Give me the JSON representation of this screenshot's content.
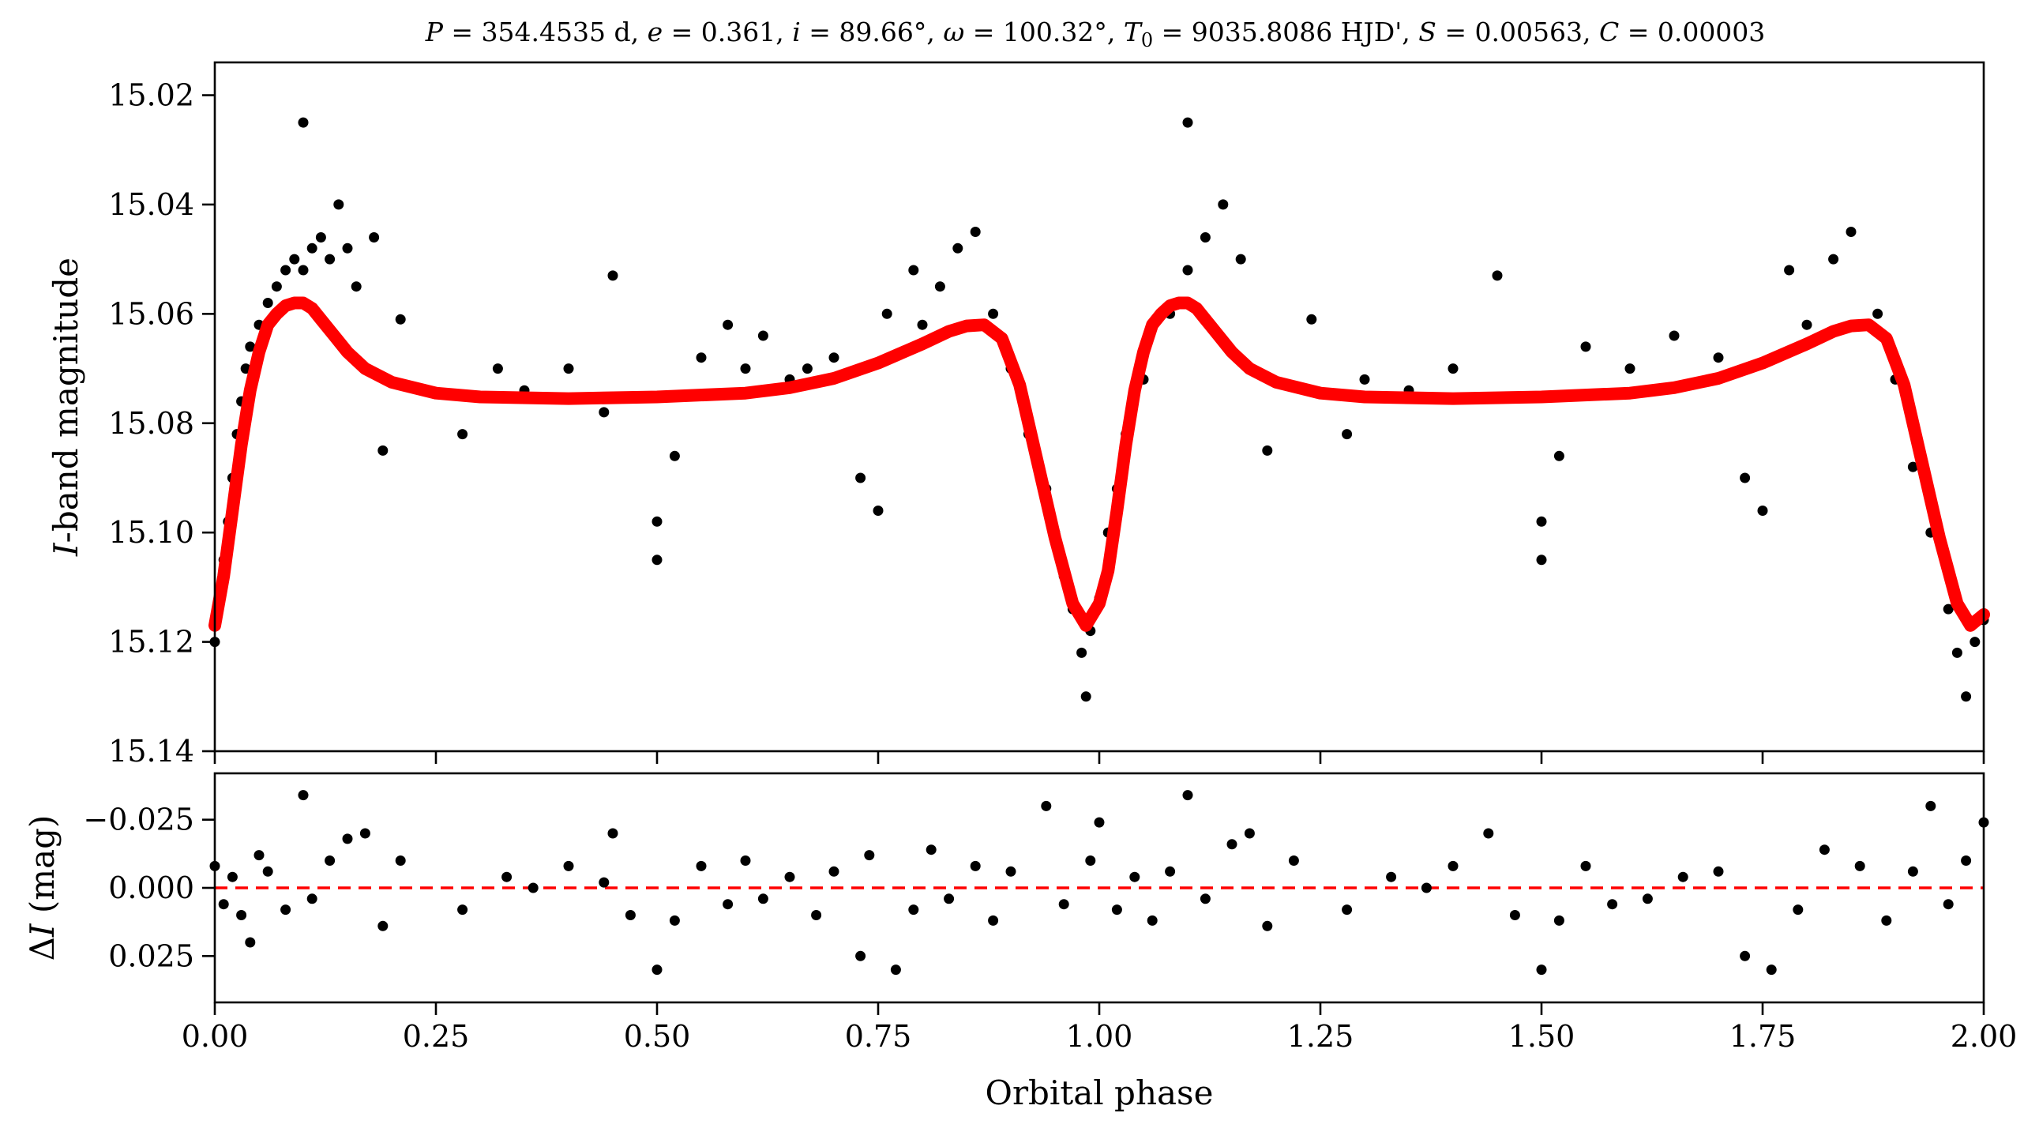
{
  "chart_data": [
    {
      "type": "scatter",
      "panel": "top",
      "title": "P = 354.4535 d, e = 0.361, i = 89.66°, ω = 100.32°, T0 = 9035.8086 HJD', S = 0.00563, C = 0.00003",
      "title_parts": {
        "P_sym": "P",
        "P_val": " = 354.4535 d, ",
        "e_sym": "e",
        "e_val": " = 0.361, ",
        "i_sym": "i",
        "i_val": " = 89.66°, ",
        "w_sym": "ω",
        "w_val": " = 100.32°, ",
        "T_sym": "T",
        "T_sub": "0",
        "T_val": " = 9035.8086 HJD', ",
        "S_sym": "S",
        "S_val": " = 0.00563, ",
        "C_sym": "C",
        "C_val": " = 0.00003"
      },
      "xlabel": "",
      "ylabel": "I-band magnitude",
      "ylabel_parts": {
        "sym": "I",
        "rest": "-band magnitude"
      },
      "xlim": [
        0.0,
        2.0
      ],
      "ylim": [
        15.14,
        15.014
      ],
      "y_inverted": true,
      "yticks": [
        15.02,
        15.04,
        15.06,
        15.08,
        15.1,
        15.12,
        15.14
      ],
      "ytick_labels": [
        "15.02",
        "15.04",
        "15.06",
        "15.08",
        "15.10",
        "15.12",
        "15.14"
      ],
      "xticks": [
        0.0,
        0.25,
        0.5,
        0.75,
        1.0,
        1.25,
        1.5,
        1.75,
        2.0
      ],
      "grid": false,
      "series": [
        {
          "kind": "observations",
          "color": "#000000",
          "points": [
            [
              0.0,
              15.12
            ],
            [
              0.005,
              15.112
            ],
            [
              0.01,
              15.105
            ],
            [
              0.015,
              15.098
            ],
            [
              0.02,
              15.09
            ],
            [
              0.025,
              15.082
            ],
            [
              0.03,
              15.076
            ],
            [
              0.035,
              15.07
            ],
            [
              0.04,
              15.066
            ],
            [
              0.05,
              15.062
            ],
            [
              0.06,
              15.058
            ],
            [
              0.07,
              15.055
            ],
            [
              0.08,
              15.052
            ],
            [
              0.09,
              15.05
            ],
            [
              0.1,
              15.025
            ],
            [
              0.1,
              15.052
            ],
            [
              0.11,
              15.048
            ],
            [
              0.12,
              15.046
            ],
            [
              0.13,
              15.05
            ],
            [
              0.14,
              15.04
            ],
            [
              0.15,
              15.048
            ],
            [
              0.16,
              15.055
            ],
            [
              0.18,
              15.046
            ],
            [
              0.19,
              15.085
            ],
            [
              0.21,
              15.061
            ],
            [
              0.28,
              15.082
            ],
            [
              0.32,
              15.07
            ],
            [
              0.35,
              15.074
            ],
            [
              0.4,
              15.07
            ],
            [
              0.44,
              15.078
            ],
            [
              0.45,
              15.053
            ],
            [
              0.5,
              15.098
            ],
            [
              0.5,
              15.105
            ],
            [
              0.52,
              15.086
            ],
            [
              0.55,
              15.068
            ],
            [
              0.58,
              15.062
            ],
            [
              0.6,
              15.07
            ],
            [
              0.62,
              15.064
            ],
            [
              0.65,
              15.072
            ],
            [
              0.67,
              15.07
            ],
            [
              0.7,
              15.068
            ],
            [
              0.73,
              15.09
            ],
            [
              0.75,
              15.096
            ],
            [
              0.76,
              15.06
            ],
            [
              0.79,
              15.052
            ],
            [
              0.8,
              15.062
            ],
            [
              0.82,
              15.055
            ],
            [
              0.84,
              15.048
            ],
            [
              0.86,
              15.045
            ],
            [
              0.88,
              15.06
            ],
            [
              0.9,
              15.07
            ],
            [
              0.92,
              15.082
            ],
            [
              0.94,
              15.092
            ],
            [
              0.95,
              15.1
            ],
            [
              0.96,
              15.108
            ],
            [
              0.97,
              15.114
            ],
            [
              0.98,
              15.122
            ],
            [
              0.985,
              15.13
            ],
            [
              0.99,
              15.118
            ],
            [
              1.0,
              15.112
            ],
            [
              1.01,
              15.1
            ],
            [
              1.02,
              15.092
            ],
            [
              1.03,
              15.082
            ],
            [
              1.05,
              15.072
            ],
            [
              1.08,
              15.06
            ],
            [
              1.1,
              15.025
            ],
            [
              1.1,
              15.052
            ],
            [
              1.12,
              15.046
            ],
            [
              1.14,
              15.04
            ],
            [
              1.16,
              15.05
            ],
            [
              1.19,
              15.085
            ],
            [
              1.24,
              15.061
            ],
            [
              1.28,
              15.082
            ],
            [
              1.3,
              15.072
            ],
            [
              1.35,
              15.074
            ],
            [
              1.4,
              15.07
            ],
            [
              1.45,
              15.053
            ],
            [
              1.5,
              15.098
            ],
            [
              1.5,
              15.105
            ],
            [
              1.52,
              15.086
            ],
            [
              1.55,
              15.066
            ],
            [
              1.6,
              15.07
            ],
            [
              1.65,
              15.064
            ],
            [
              1.7,
              15.068
            ],
            [
              1.73,
              15.09
            ],
            [
              1.75,
              15.096
            ],
            [
              1.78,
              15.052
            ],
            [
              1.8,
              15.062
            ],
            [
              1.83,
              15.05
            ],
            [
              1.85,
              15.045
            ],
            [
              1.88,
              15.06
            ],
            [
              1.9,
              15.072
            ],
            [
              1.92,
              15.088
            ],
            [
              1.94,
              15.1
            ],
            [
              1.96,
              15.114
            ],
            [
              1.97,
              15.122
            ],
            [
              1.98,
              15.13
            ],
            [
              1.99,
              15.12
            ],
            [
              2.0,
              15.116
            ]
          ]
        },
        {
          "kind": "model",
          "color": "#ff0000",
          "points": [
            [
              0.0,
              15.117
            ],
            [
              0.01,
              15.108
            ],
            [
              0.02,
              15.096
            ],
            [
              0.03,
              15.084
            ],
            [
              0.04,
              15.074
            ],
            [
              0.05,
              15.067
            ],
            [
              0.06,
              15.062
            ],
            [
              0.07,
              15.06
            ],
            [
              0.08,
              15.0585
            ],
            [
              0.09,
              15.058
            ],
            [
              0.1,
              15.058
            ],
            [
              0.11,
              15.059
            ],
            [
              0.12,
              15.061
            ],
            [
              0.135,
              15.064
            ],
            [
              0.15,
              15.067
            ],
            [
              0.17,
              15.07
            ],
            [
              0.2,
              15.0725
            ],
            [
              0.25,
              15.0745
            ],
            [
              0.3,
              15.0752
            ],
            [
              0.4,
              15.0755
            ],
            [
              0.5,
              15.0752
            ],
            [
              0.6,
              15.0745
            ],
            [
              0.65,
              15.0735
            ],
            [
              0.7,
              15.0718
            ],
            [
              0.75,
              15.069
            ],
            [
              0.8,
              15.0655
            ],
            [
              0.83,
              15.0632
            ],
            [
              0.85,
              15.0622
            ],
            [
              0.87,
              15.062
            ],
            [
              0.89,
              15.0645
            ],
            [
              0.91,
              15.073
            ],
            [
              0.93,
              15.087
            ],
            [
              0.95,
              15.101
            ],
            [
              0.97,
              15.113
            ],
            [
              0.985,
              15.117
            ],
            [
              1.0,
              15.113
            ],
            [
              1.01,
              15.107
            ],
            [
              1.02,
              15.096
            ],
            [
              1.03,
              15.084
            ],
            [
              1.04,
              15.074
            ],
            [
              1.05,
              15.067
            ],
            [
              1.06,
              15.062
            ],
            [
              1.07,
              15.06
            ],
            [
              1.08,
              15.0585
            ],
            [
              1.09,
              15.058
            ],
            [
              1.1,
              15.058
            ],
            [
              1.11,
              15.059
            ],
            [
              1.12,
              15.061
            ],
            [
              1.135,
              15.064
            ],
            [
              1.15,
              15.067
            ],
            [
              1.17,
              15.07
            ],
            [
              1.2,
              15.0725
            ],
            [
              1.25,
              15.0745
            ],
            [
              1.3,
              15.0752
            ],
            [
              1.4,
              15.0755
            ],
            [
              1.5,
              15.0752
            ],
            [
              1.6,
              15.0745
            ],
            [
              1.65,
              15.0735
            ],
            [
              1.7,
              15.0718
            ],
            [
              1.75,
              15.069
            ],
            [
              1.8,
              15.0655
            ],
            [
              1.83,
              15.0632
            ],
            [
              1.85,
              15.0622
            ],
            [
              1.87,
              15.062
            ],
            [
              1.89,
              15.0645
            ],
            [
              1.91,
              15.073
            ],
            [
              1.93,
              15.087
            ],
            [
              1.95,
              15.101
            ],
            [
              1.97,
              15.113
            ],
            [
              1.985,
              15.117
            ],
            [
              2.0,
              15.115
            ]
          ]
        }
      ]
    },
    {
      "type": "scatter",
      "panel": "bottom",
      "xlabel": "Orbital phase",
      "ylabel": "ΔI (mag)",
      "ylabel_parts": {
        "delta": "Δ",
        "sym": "I",
        "rest": " (mag)"
      },
      "xlim": [
        0.0,
        2.0
      ],
      "ylim": [
        0.042,
        -0.042
      ],
      "y_inverted": true,
      "yticks": [
        -0.025,
        0.0,
        0.025
      ],
      "ytick_labels": [
        "−0.025",
        "0.000",
        "0.025"
      ],
      "xticks": [
        0.0,
        0.25,
        0.5,
        0.75,
        1.0,
        1.25,
        1.5,
        1.75,
        2.0
      ],
      "xtick_labels": [
        "0.00",
        "0.25",
        "0.50",
        "0.75",
        "1.00",
        "1.25",
        "1.50",
        "1.75",
        "2.00"
      ],
      "grid": false,
      "zero_line": {
        "y": 0.0,
        "style": "dashed",
        "color": "#ff0000"
      },
      "series": [
        {
          "kind": "residuals",
          "color": "#000000",
          "points": [
            [
              0.0,
              -0.008
            ],
            [
              0.01,
              0.006
            ],
            [
              0.02,
              -0.004
            ],
            [
              0.03,
              0.01
            ],
            [
              0.04,
              0.02
            ],
            [
              0.05,
              -0.012
            ],
            [
              0.06,
              -0.006
            ],
            [
              0.08,
              0.008
            ],
            [
              0.1,
              -0.034
            ],
            [
              0.11,
              0.004
            ],
            [
              0.13,
              -0.01
            ],
            [
              0.15,
              -0.018
            ],
            [
              0.17,
              -0.02
            ],
            [
              0.19,
              0.014
            ],
            [
              0.21,
              -0.01
            ],
            [
              0.28,
              0.008
            ],
            [
              0.33,
              -0.004
            ],
            [
              0.36,
              0.0
            ],
            [
              0.4,
              -0.008
            ],
            [
              0.44,
              -0.002
            ],
            [
              0.45,
              -0.02
            ],
            [
              0.47,
              0.01
            ],
            [
              0.5,
              0.03
            ],
            [
              0.52,
              0.012
            ],
            [
              0.55,
              -0.008
            ],
            [
              0.58,
              0.006
            ],
            [
              0.6,
              -0.01
            ],
            [
              0.62,
              0.004
            ],
            [
              0.65,
              -0.004
            ],
            [
              0.68,
              0.01
            ],
            [
              0.7,
              -0.006
            ],
            [
              0.73,
              0.025
            ],
            [
              0.74,
              -0.012
            ],
            [
              0.77,
              0.03
            ],
            [
              0.79,
              0.008
            ],
            [
              0.81,
              -0.014
            ],
            [
              0.83,
              0.004
            ],
            [
              0.86,
              -0.008
            ],
            [
              0.88,
              0.012
            ],
            [
              0.9,
              -0.006
            ],
            [
              0.94,
              -0.03
            ],
            [
              0.96,
              0.006
            ],
            [
              0.99,
              -0.01
            ],
            [
              1.0,
              -0.024
            ],
            [
              1.02,
              0.008
            ],
            [
              1.04,
              -0.004
            ],
            [
              1.06,
              0.012
            ],
            [
              1.08,
              -0.006
            ],
            [
              1.1,
              -0.034
            ],
            [
              1.12,
              0.004
            ],
            [
              1.15,
              -0.016
            ],
            [
              1.17,
              -0.02
            ],
            [
              1.19,
              0.014
            ],
            [
              1.22,
              -0.01
            ],
            [
              1.28,
              0.008
            ],
            [
              1.33,
              -0.004
            ],
            [
              1.37,
              0.0
            ],
            [
              1.4,
              -0.008
            ],
            [
              1.44,
              -0.02
            ],
            [
              1.47,
              0.01
            ],
            [
              1.5,
              0.03
            ],
            [
              1.52,
              0.012
            ],
            [
              1.55,
              -0.008
            ],
            [
              1.58,
              0.006
            ],
            [
              1.62,
              0.004
            ],
            [
              1.66,
              -0.004
            ],
            [
              1.7,
              -0.006
            ],
            [
              1.73,
              0.025
            ],
            [
              1.76,
              0.03
            ],
            [
              1.79,
              0.008
            ],
            [
              1.82,
              -0.014
            ],
            [
              1.86,
              -0.008
            ],
            [
              1.89,
              0.012
            ],
            [
              1.92,
              -0.006
            ],
            [
              1.94,
              -0.03
            ],
            [
              1.96,
              0.006
            ],
            [
              1.98,
              -0.01
            ],
            [
              2.0,
              -0.024
            ]
          ]
        }
      ]
    }
  ]
}
